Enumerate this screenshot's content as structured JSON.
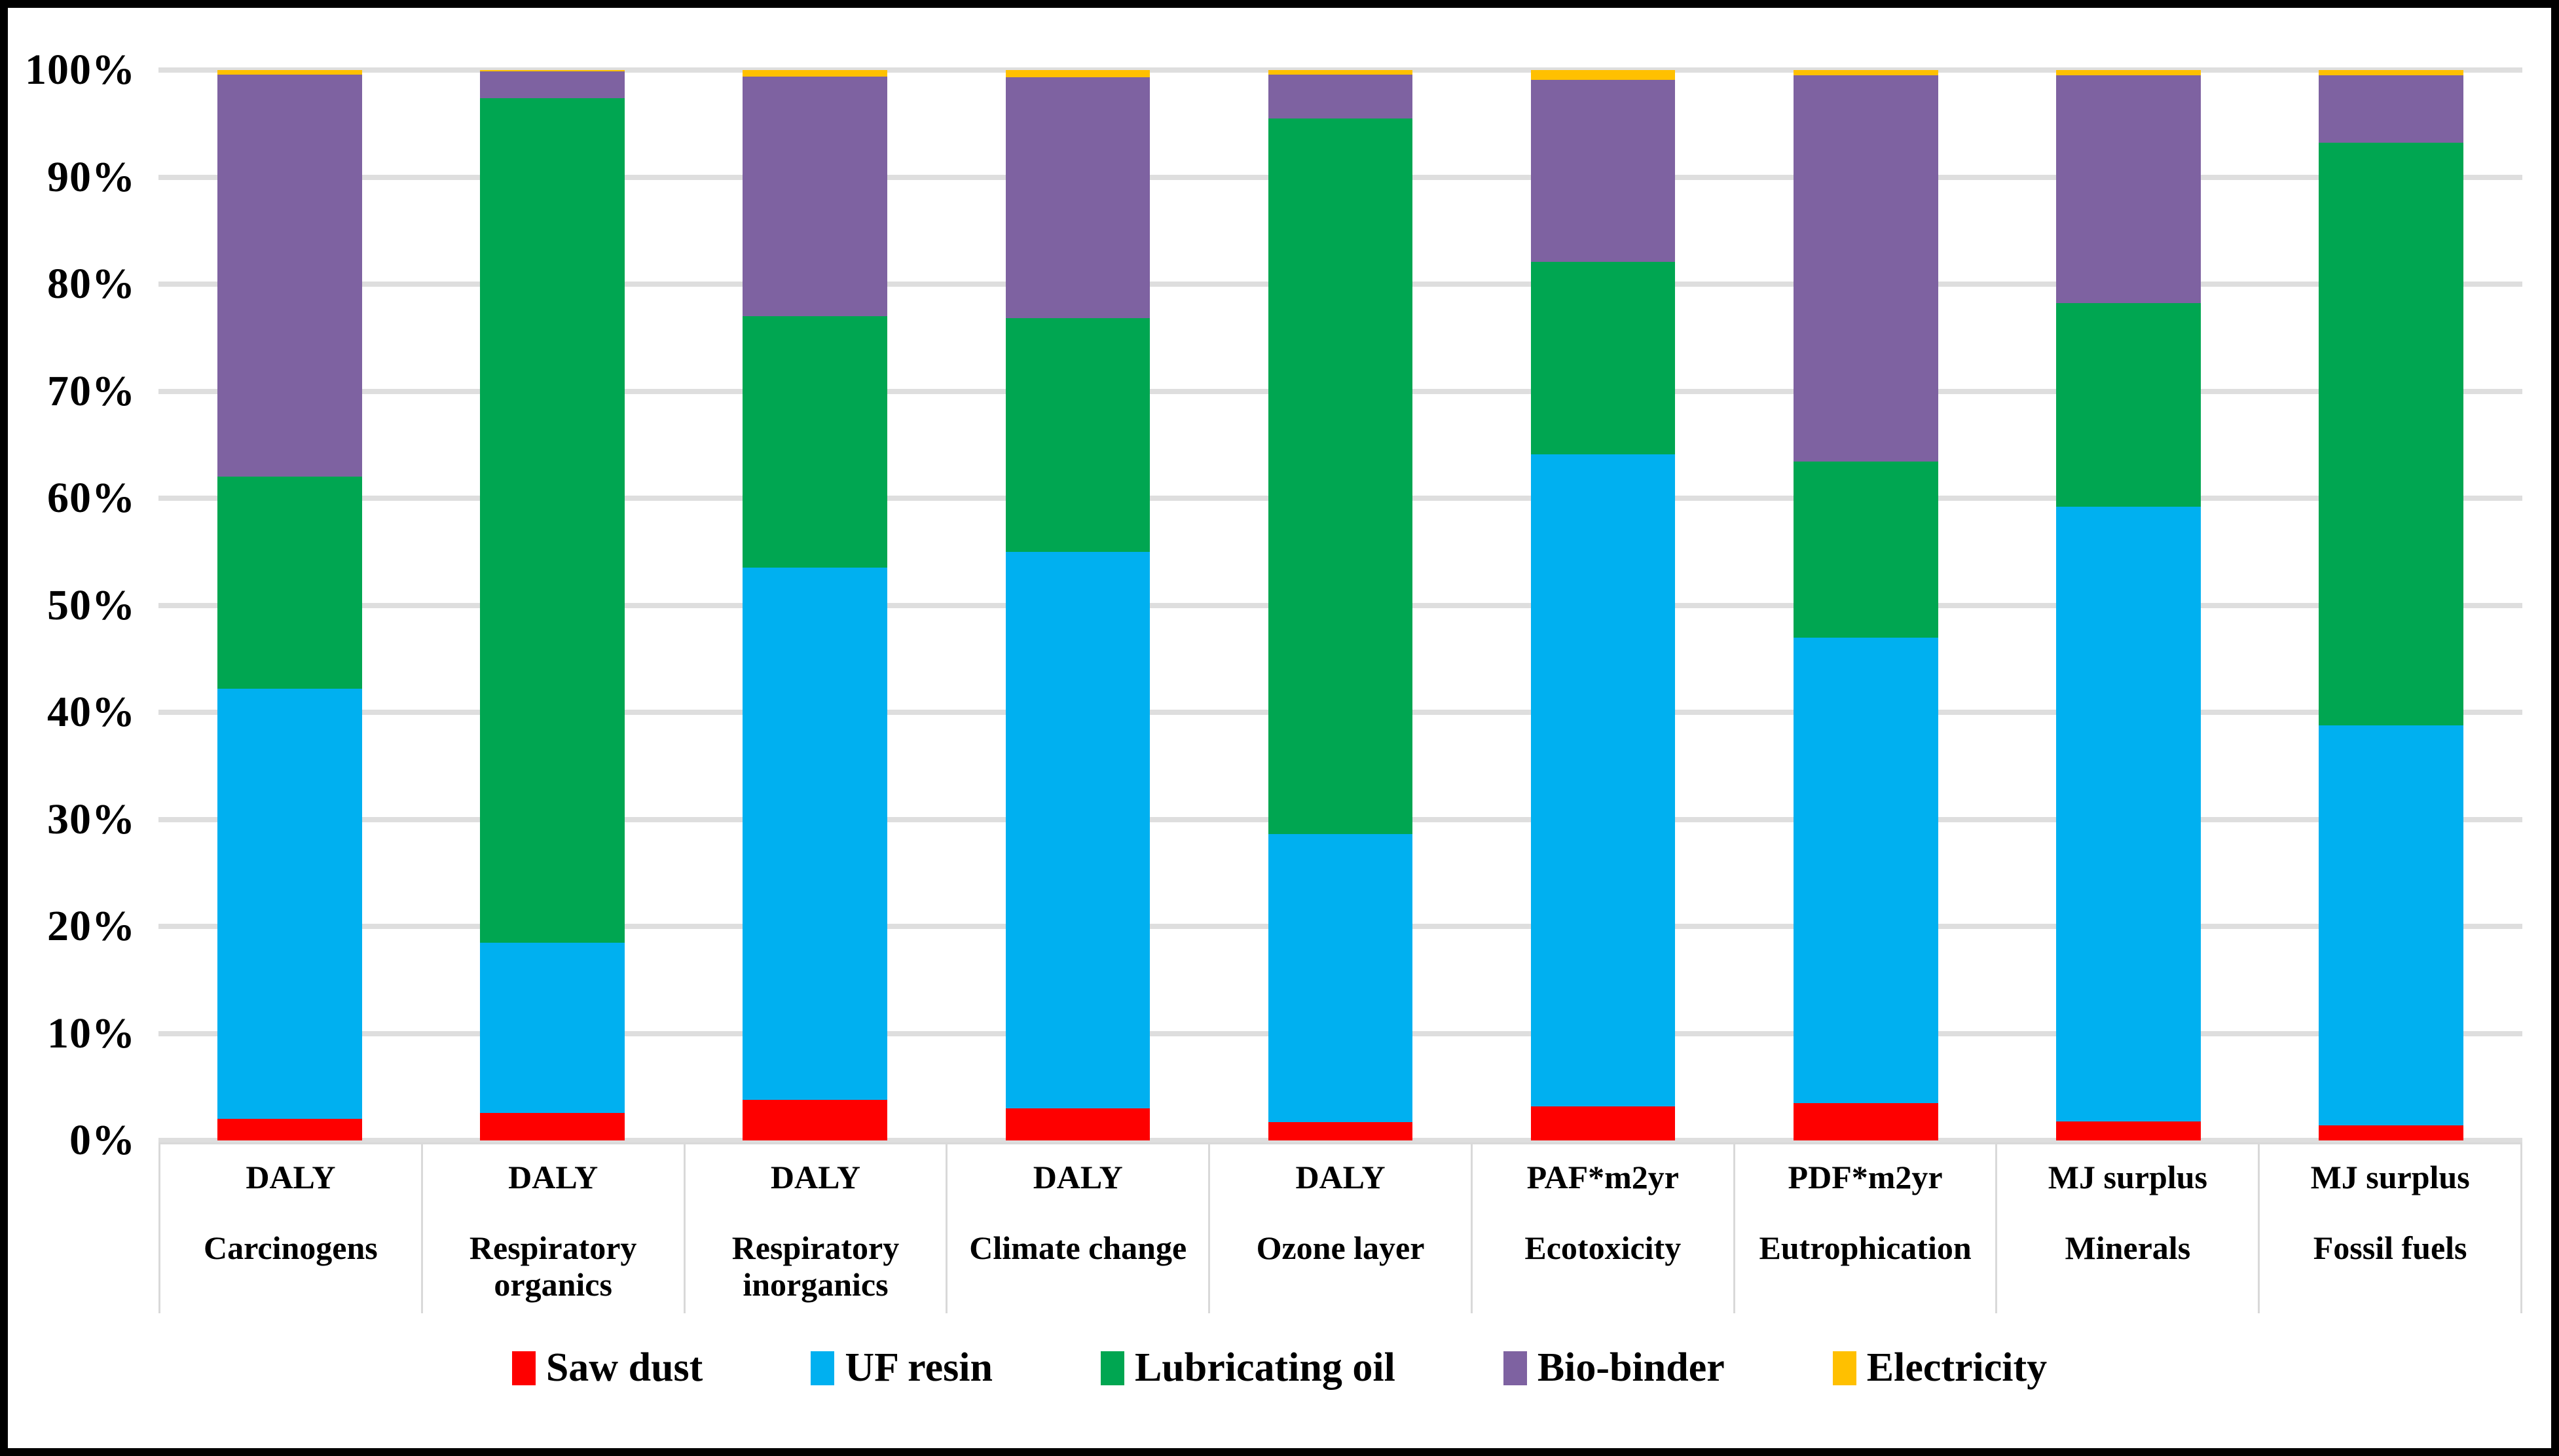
{
  "figure": {
    "background": "#ffffff",
    "border_color": "#000000",
    "gridline_color": "#dedede",
    "separator_color": "#d9d9d9",
    "text_color": "#000000"
  },
  "chart_data": {
    "type": "bar",
    "stacked": true,
    "percent_stacked": true,
    "title": "",
    "xlabel": "",
    "ylabel": "",
    "ylim": [
      0,
      100
    ],
    "grid": true,
    "legend_position": "bottom",
    "y_ticks": [
      "0%",
      "10%",
      "20%",
      "30%",
      "40%",
      "50%",
      "60%",
      "70%",
      "80%",
      "90%",
      "100%"
    ],
    "categories": [
      {
        "unit": "DALY",
        "name": "Carcinogens"
      },
      {
        "unit": "DALY",
        "name": "Respiratory organics"
      },
      {
        "unit": "DALY",
        "name": "Respiratory inorganics"
      },
      {
        "unit": "DALY",
        "name": "Climate change"
      },
      {
        "unit": "DALY",
        "name": "Ozone layer"
      },
      {
        "unit": "PAF*m2yr",
        "name": "Ecotoxicity"
      },
      {
        "unit": "PDF*m2yr",
        "name": "Eutrophication"
      },
      {
        "unit": "MJ surplus",
        "name": "Minerals"
      },
      {
        "unit": "MJ surplus",
        "name": "Fossil fuels"
      }
    ],
    "series": [
      {
        "name": "Saw dust",
        "color": "#fe0000",
        "values": [
          2.0,
          2.6,
          3.8,
          3.0,
          1.7,
          3.2,
          3.5,
          1.8,
          1.4
        ]
      },
      {
        "name": "UF resin",
        "color": "#00b0f0",
        "values": [
          40.2,
          15.9,
          49.7,
          52.0,
          26.9,
          60.9,
          43.5,
          57.4,
          37.4
        ]
      },
      {
        "name": "Lubricating oil",
        "color": "#00a651",
        "values": [
          19.8,
          78.9,
          23.5,
          21.8,
          66.9,
          18.0,
          16.4,
          19.0,
          54.4
        ]
      },
      {
        "name": "Bio-binder",
        "color": "#7e62a1",
        "values": [
          37.6,
          2.5,
          22.4,
          22.5,
          4.1,
          17.0,
          36.1,
          21.3,
          6.3
        ]
      },
      {
        "name": "Electricity",
        "color": "#ffc000",
        "values": [
          0.4,
          0.1,
          0.6,
          0.7,
          0.4,
          0.9,
          0.5,
          0.5,
          0.5
        ]
      }
    ]
  }
}
